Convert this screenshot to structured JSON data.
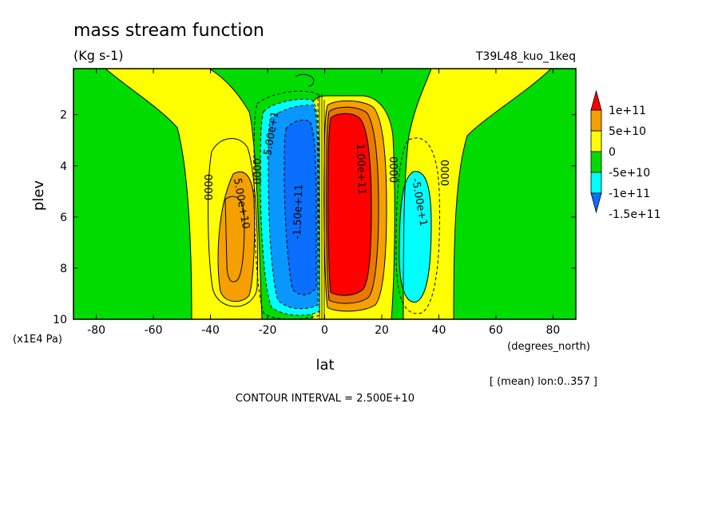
{
  "chart_data": {
    "type": "heatmap",
    "title": "mass stream function",
    "units": "(Kg s-1)",
    "run_label": "T39L48_kuo_1keq",
    "xlabel": "lat",
    "xunits": "(degrees_north)",
    "ylabel": "plev",
    "yunits": "(x1E4 Pa)",
    "xlim": [
      -88,
      88
    ],
    "ylim": [
      10,
      0.2
    ],
    "x_ticks": [
      -80,
      -60,
      -40,
      -20,
      0,
      20,
      40,
      60,
      80
    ],
    "x_tick_labels": [
      "-80",
      "-60",
      "-40",
      "-20",
      "0",
      "20",
      "40",
      "60",
      "80"
    ],
    "y_ticks": [
      2,
      4,
      6,
      8,
      10
    ],
    "y_tick_labels": [
      "2",
      "4",
      "6",
      "8",
      "10"
    ],
    "averaging_note": "[ (mean) lon:0..357 ]",
    "contour_interval_text": "CONTOUR INTERVAL = 2.500E+10",
    "colorbar": {
      "labels": [
        "1e+11",
        "5e+10",
        "0",
        "-5e+10",
        "-1e+11",
        "-1.5e+11"
      ],
      "colors": [
        "#ff0000",
        "#f5a000",
        "#ffff00",
        "#00dc00",
        "#00ffff",
        "#0a6eff"
      ]
    },
    "contour_labels": [
      "0000",
      "0000",
      "5.00e+10",
      "-5.00e+1",
      "-1.50e+11",
      "1.00e+11",
      "0000",
      "0000",
      "-5.00e+1"
    ],
    "cells": [
      {
        "name": "northern-hadley-cell",
        "sign": "positive",
        "center_lat": 8,
        "center_plev": 5.5,
        "peak": 100000000000.0
      },
      {
        "name": "southern-hadley-cell",
        "sign": "negative",
        "center_lat": -7,
        "center_plev": 5.5,
        "peak": -150000000000.0
      },
      {
        "name": "southern-ferrel-cell",
        "sign": "positive",
        "center_lat": -31,
        "center_plev": 6.8,
        "peak": 50000000000.0
      },
      {
        "name": "northern-ferrel-cell",
        "sign": "negative",
        "center_lat": 32,
        "center_plev": 6.8,
        "peak": -50000000000.0
      }
    ]
  }
}
